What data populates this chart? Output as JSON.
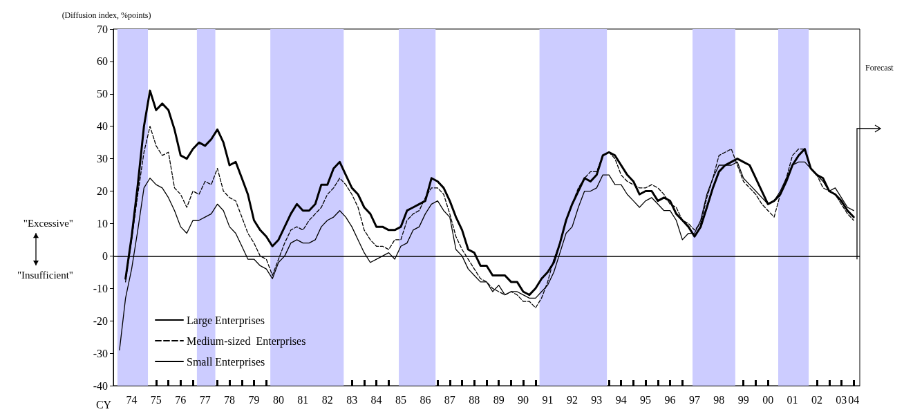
{
  "chart_data": {
    "type": "line",
    "ylabel": "(Diffusion index, %points)",
    "x": [
      "1974-01",
      "1974-04",
      "1974-07",
      "1974-10",
      "1975-01",
      "1975-04",
      "1975-07",
      "1975-10",
      "1976-01",
      "1976-04",
      "1976-07",
      "1976-10",
      "1977-01",
      "1977-04",
      "1977-07",
      "1977-10",
      "1978-01",
      "1978-04",
      "1978-07",
      "1978-10",
      "1979-01",
      "1979-04",
      "1979-07",
      "1979-10",
      "1980-01",
      "1980-04",
      "1980-07",
      "1980-10",
      "1981-01",
      "1981-04",
      "1981-07",
      "1981-10",
      "1982-01",
      "1982-04",
      "1982-07",
      "1982-10",
      "1983-01",
      "1983-04",
      "1983-07",
      "1983-10",
      "1984-01",
      "1984-04",
      "1984-07",
      "1984-10",
      "1985-01",
      "1985-04",
      "1985-07",
      "1985-10",
      "1986-01",
      "1986-04",
      "1986-07",
      "1986-10",
      "1987-01",
      "1987-04",
      "1987-07",
      "1987-10",
      "1988-01",
      "1988-04",
      "1988-07",
      "1988-10",
      "1989-01",
      "1989-04",
      "1989-07",
      "1989-10",
      "1990-01",
      "1990-04",
      "1990-07",
      "1990-10",
      "1991-01",
      "1991-04",
      "1991-07",
      "1991-10",
      "1992-01",
      "1992-04",
      "1992-07",
      "1992-10",
      "1993-01",
      "1993-04",
      "1993-07",
      "1993-10",
      "1994-01",
      "1994-04",
      "1994-07",
      "1994-10",
      "1995-01",
      "1995-04",
      "1995-07",
      "1995-10",
      "1996-01",
      "1996-04",
      "1996-07",
      "1996-10",
      "1997-01",
      "1997-04",
      "1997-07",
      "1997-10",
      "1998-01",
      "1998-04",
      "1998-07",
      "1998-10",
      "1999-01",
      "1999-04",
      "1999-07",
      "1999-10",
      "2000-01",
      "2000-04",
      "2000-07",
      "2000-10",
      "2001-01",
      "2001-04",
      "2001-07",
      "2001-10",
      "2002-01",
      "2002-04",
      "2002-07",
      "2002-10",
      "2003-01",
      "2003-04",
      "2003-07",
      "2003-10",
      "2004-01"
    ],
    "series": [
      {
        "name": "Large Enterprises",
        "color": "#000000",
        "line_style": "solid",
        "values": [
          null,
          -7,
          6,
          22,
          40,
          51,
          45,
          47,
          45,
          39,
          31,
          30,
          33,
          35,
          34,
          36,
          39,
          35,
          28,
          29,
          24,
          19,
          11,
          8,
          6,
          3,
          5,
          9,
          13,
          16,
          14,
          14,
          16,
          22,
          22,
          27,
          29,
          25,
          21,
          19,
          15,
          13,
          9,
          9,
          8,
          8,
          9,
          14,
          15,
          16,
          17,
          24,
          23,
          21,
          17,
          12,
          8,
          2,
          1,
          -3,
          -3,
          -6,
          -6,
          -6,
          -8,
          -8,
          -11,
          -12,
          -10,
          -7,
          -5,
          -2,
          4,
          11,
          16,
          20,
          24,
          23,
          25,
          31,
          32,
          31,
          28,
          25,
          23,
          19,
          20,
          20,
          17,
          18,
          17,
          13,
          11,
          9,
          6,
          9,
          15,
          21,
          26,
          28,
          29,
          30,
          29,
          28,
          24,
          20,
          16,
          17,
          19,
          23,
          28,
          31,
          33,
          27,
          25,
          24,
          20,
          19,
          17,
          14,
          12
        ]
      },
      {
        "name": "Medium-sized  Enterprises",
        "color": "#000000",
        "line_style": "dashed",
        "values": [
          null,
          -8,
          5,
          19,
          32,
          40,
          34,
          31,
          32,
          21,
          19,
          15,
          20,
          19,
          23,
          22,
          27,
          20,
          18,
          17,
          12,
          7,
          4,
          0,
          -1,
          -6,
          -1,
          4,
          8,
          9,
          8,
          11,
          13,
          15,
          19,
          21,
          24,
          22,
          19,
          15,
          8,
          5,
          3,
          3,
          2,
          5,
          5,
          11,
          13,
          14,
          18,
          21,
          21,
          19,
          13,
          6,
          2,
          -1,
          -4,
          -7,
          -8,
          -10,
          -11,
          -12,
          -11,
          -12,
          -14,
          -14,
          -16,
          -13,
          -8,
          -1,
          4,
          11,
          16,
          21,
          24,
          26,
          26,
          31,
          32,
          30,
          25,
          23,
          22,
          21,
          21,
          22,
          21,
          19,
          16,
          15,
          11,
          10,
          8,
          10,
          18,
          24,
          31,
          32,
          33,
          28,
          23,
          21,
          19,
          16,
          14,
          12,
          19,
          24,
          31,
          33,
          33,
          27,
          25,
          21,
          20,
          19,
          16,
          13,
          11
        ]
      },
      {
        "name": "Small Enterprises",
        "color": "#000000",
        "line_style": "solid",
        "values": [
          -29,
          -13,
          -4,
          8,
          21,
          24,
          22,
          21,
          18,
          14,
          9,
          7,
          11,
          11,
          12,
          13,
          16,
          14,
          9,
          7,
          3,
          -1,
          -1,
          -3,
          -4,
          -7,
          -2,
          0,
          4,
          5,
          4,
          4,
          5,
          9,
          11,
          12,
          14,
          12,
          9,
          5,
          1,
          -2,
          -1,
          0,
          1,
          -1,
          3,
          4,
          8,
          9,
          13,
          16,
          17,
          14,
          12,
          2,
          0,
          -4,
          -6,
          -8,
          -8,
          -11,
          -9,
          -12,
          -11,
          -11,
          -12,
          -13,
          -13,
          -11,
          -9,
          -5,
          1,
          7,
          9,
          15,
          20,
          20,
          21,
          25,
          25,
          22,
          22,
          19,
          17,
          15,
          17,
          18,
          16,
          14,
          14,
          11,
          5,
          7,
          7,
          11,
          19,
          24,
          28,
          28,
          28,
          29,
          24,
          22,
          20,
          18,
          16,
          17,
          20,
          24,
          28,
          29,
          29,
          27,
          25,
          23,
          20,
          21,
          18,
          15,
          14
        ]
      }
    ],
    "xlim": [
      "1973-10",
      "2004-04"
    ],
    "xticks": [
      {
        "value": "1974",
        "label": null
      },
      {
        "value": "1974-07",
        "label": "74"
      },
      {
        "value": "1975",
        "label": null
      },
      {
        "value": "1975-07",
        "label": "75"
      },
      {
        "value": "1976",
        "label": null
      },
      {
        "value": "1976-07",
        "label": "76"
      },
      {
        "value": "1977",
        "label": null
      },
      {
        "value": "1977-07",
        "label": "77"
      },
      {
        "value": "1978",
        "label": null
      },
      {
        "value": "1978-07",
        "label": "78"
      },
      {
        "value": "1979",
        "label": null
      },
      {
        "value": "1979-07",
        "label": "79"
      },
      {
        "value": "1980",
        "label": null
      },
      {
        "value": "1980-07",
        "label": "80"
      },
      {
        "value": "1981",
        "label": null
      },
      {
        "value": "1981-07",
        "label": "81"
      },
      {
        "value": "1982",
        "label": null
      },
      {
        "value": "1982-07",
        "label": "82"
      },
      {
        "value": "1983",
        "label": null
      },
      {
        "value": "1983-07",
        "label": "83"
      },
      {
        "value": "1984",
        "label": null
      },
      {
        "value": "1984-07",
        "label": "84"
      },
      {
        "value": "1985",
        "label": null
      },
      {
        "value": "1985-07",
        "label": "85"
      },
      {
        "value": "1986",
        "label": null
      },
      {
        "value": "1986-07",
        "label": "86"
      },
      {
        "value": "1987",
        "label": null
      },
      {
        "value": "1987-07",
        "label": "87"
      },
      {
        "value": "1988",
        "label": null
      },
      {
        "value": "1988-07",
        "label": "88"
      },
      {
        "value": "1989",
        "label": null
      },
      {
        "value": "1989-07",
        "label": "89"
      },
      {
        "value": "1990",
        "label": null
      },
      {
        "value": "1990-07",
        "label": "90"
      },
      {
        "value": "1991",
        "label": null
      },
      {
        "value": "1991-07",
        "label": "91"
      },
      {
        "value": "1992",
        "label": null
      },
      {
        "value": "1992-07",
        "label": "92"
      },
      {
        "value": "1993",
        "label": null
      },
      {
        "value": "1993-07",
        "label": "93"
      },
      {
        "value": "1994",
        "label": null
      },
      {
        "value": "1994-07",
        "label": "94"
      },
      {
        "value": "1995",
        "label": null
      },
      {
        "value": "1995-07",
        "label": "95"
      },
      {
        "value": "1996",
        "label": null
      },
      {
        "value": "1996-07",
        "label": "96"
      },
      {
        "value": "1997",
        "label": null
      },
      {
        "value": "1997-07",
        "label": "97"
      },
      {
        "value": "1998",
        "label": null
      },
      {
        "value": "1998-07",
        "label": "98"
      },
      {
        "value": "1999",
        "label": null
      },
      {
        "value": "1999-07",
        "label": "99"
      },
      {
        "value": "2000",
        "label": null
      },
      {
        "value": "2000-07",
        "label": "00"
      },
      {
        "value": "2001",
        "label": null
      },
      {
        "value": "2001-07",
        "label": "01"
      },
      {
        "value": "2002",
        "label": null
      },
      {
        "value": "2002-07",
        "label": "02"
      },
      {
        "value": "2003",
        "label": null
      },
      {
        "value": "2003-07",
        "label": "03"
      },
      {
        "value": "2004",
        "label": "04"
      }
    ],
    "ylim": [
      -40,
      70
    ],
    "yticks": [
      -40,
      -30,
      -20,
      -10,
      0,
      10,
      20,
      30,
      40,
      50,
      60,
      70
    ],
    "bands": [
      {
        "axis": "x",
        "from": "1973-12",
        "to": "1975-03",
        "color": "#ccccff"
      },
      {
        "axis": "x",
        "from": "1977-03",
        "to": "1977-12",
        "color": "#ccccff"
      },
      {
        "axis": "x",
        "from": "1980-03",
        "to": "1983-03",
        "color": "#ccccff"
      },
      {
        "axis": "x",
        "from": "1985-06",
        "to": "1986-12",
        "color": "#ccccff"
      },
      {
        "axis": "x",
        "from": "1991-03",
        "to": "1993-12",
        "color": "#ccccff"
      },
      {
        "axis": "x",
        "from": "1997-06",
        "to": "1999-03",
        "color": "#ccccff"
      },
      {
        "axis": "x",
        "from": "2000-12",
        "to": "2002-03",
        "color": "#ccccff"
      }
    ],
    "ref_lines": [
      {
        "axis": "y",
        "value": 0,
        "color": "#000000"
      }
    ],
    "annotations": [
      "\"Excessive\"",
      "\"Insufficient\"",
      "CY",
      "Forecast"
    ],
    "legend": "bottom left",
    "grid": false,
    "marker": "none"
  }
}
